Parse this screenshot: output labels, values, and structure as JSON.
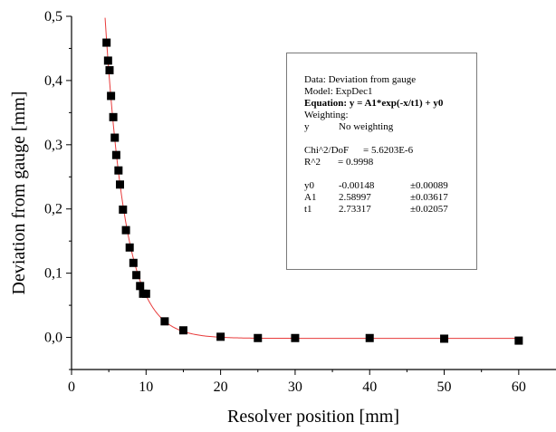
{
  "chart_data": {
    "type": "scatter",
    "xlabel": "Resolver position [mm]",
    "ylabel": "Deviation from gauge [mm]",
    "xlim": [
      0,
      65
    ],
    "ylim": [
      -0.05,
      0.5
    ],
    "x_ticks": [
      0,
      10,
      20,
      30,
      40,
      50,
      60
    ],
    "x_tick_labels": [
      "0",
      "10",
      "20",
      "30",
      "40",
      "50",
      "60"
    ],
    "y_ticks": [
      0.0,
      0.1,
      0.2,
      0.3,
      0.4,
      0.5
    ],
    "y_tick_labels": [
      "0,0",
      "0,1",
      "0,2",
      "0,3",
      "0,4",
      "0,5"
    ],
    "grid": false,
    "marker_color": "#000000",
    "fit_color": "#e83a3a",
    "series": [
      {
        "x": [
          4.7,
          4.9,
          5.1,
          5.3,
          5.6,
          5.8,
          6.0,
          6.3,
          6.5,
          6.9,
          7.3,
          7.8,
          8.3,
          8.7,
          9.2,
          9.6,
          10.0,
          12.5,
          15.0,
          20.0,
          25.0,
          30.0,
          40.0,
          50.0,
          60.0
        ],
        "y": [
          0.459,
          0.431,
          0.416,
          0.376,
          0.343,
          0.311,
          0.284,
          0.26,
          0.238,
          0.199,
          0.167,
          0.14,
          0.116,
          0.097,
          0.08,
          0.068,
          0.068,
          0.025,
          0.011,
          0.001,
          -0.001,
          -0.001,
          -0.001,
          -0.002,
          -0.005
        ]
      }
    ],
    "fit": {
      "model": "ExpDec1",
      "y0": -0.00148,
      "A1": 2.58997,
      "t1": 2.73317,
      "x_range": [
        4.5,
        60
      ]
    }
  },
  "fit_box": {
    "data_line": "Data: Deviation from gauge",
    "model_line": "Model: ExpDec1",
    "equation_line": "Equation: y = A1*exp(-x/t1) + y0",
    "weighting_label": "Weighting:",
    "weight_var": "y",
    "weight_value": "No weighting",
    "chi_label": "Chi^2/DoF",
    "chi_value": "= 5.6203E-6",
    "r2_label": "R^2",
    "r2_value": "=  0.9998",
    "params": [
      {
        "name": "y0",
        "value": "-0.00148",
        "error": "±0.00089"
      },
      {
        "name": "A1",
        "value": "2.58997",
        "error": "±0.03617"
      },
      {
        "name": "t1",
        "value": "2.73317",
        "error": "±0.02057"
      }
    ]
  }
}
